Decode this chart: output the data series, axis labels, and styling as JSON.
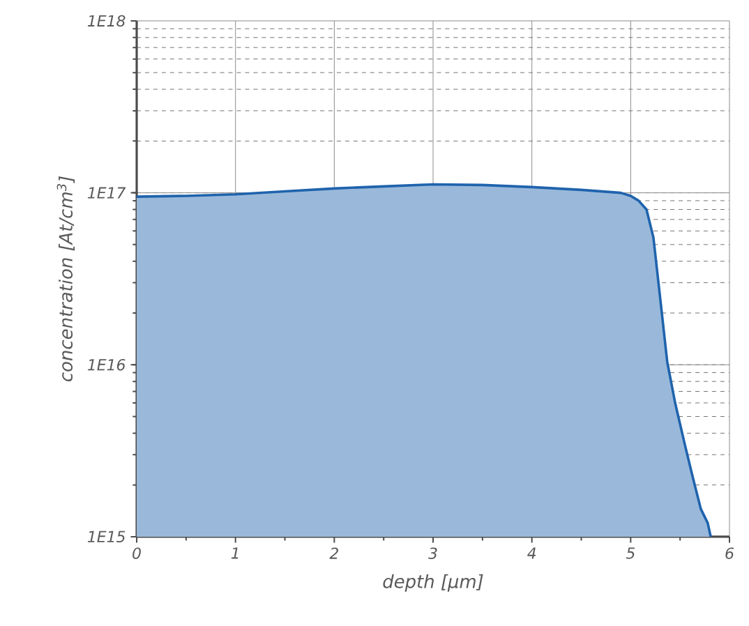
{
  "chart_data": {
    "type": "area",
    "xlabel": "depth [µm]",
    "ylabel": "concentration [At/cm$^{3}$]",
    "log": "y",
    "grid": true,
    "x": [
      0,
      0.5,
      1,
      1.5,
      2,
      2.5,
      3,
      3.5,
      4,
      4.5,
      4.9,
      5.0,
      5.08,
      5.16,
      5.23,
      5.3,
      5.37,
      5.45,
      5.55,
      5.63,
      5.71,
      5.78,
      5.81
    ],
    "series": [
      {
        "color": "#1f63ad",
        "values": [
          9.5e+16,
          9.6e+16,
          9.8e+16,
          1.02e+17,
          1.06e+17,
          1.09e+17,
          1.12e+17,
          1.11e+17,
          1.08e+17,
          1.04e+17,
          1e+17,
          9.6e+16,
          9e+16,
          8e+16,
          5.5e+16,
          2.4e+16,
          1.04e+16,
          6000000000000000.0,
          3400000000000000.0,
          2200000000000000.0,
          1450000000000000.0,
          1200000000000000.0,
          1000000000000000.0
        ]
      }
    ],
    "xlim": [
      0,
      6
    ],
    "xticks": [
      0,
      1,
      2,
      3,
      4,
      5,
      6
    ],
    "ylim": [
      1000000000000000.0,
      1e+18
    ],
    "yticks": [
      {
        "value": 1000000000000000.0,
        "label": "1E15"
      },
      {
        "value": 1e+16,
        "label": "1E16"
      },
      {
        "value": 1e+17,
        "label": "1E17"
      },
      {
        "value": 1e+18,
        "label": "1E18"
      }
    ]
  }
}
